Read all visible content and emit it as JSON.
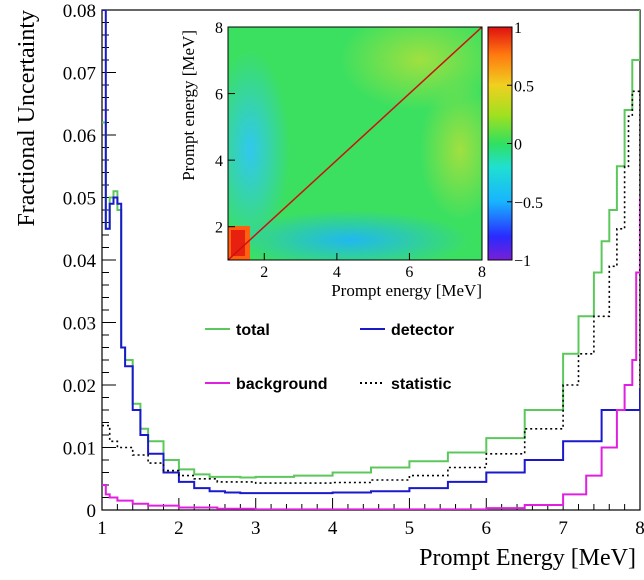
{
  "chart_data": [
    {
      "type": "line",
      "title": "",
      "xlabel": "Prompt Energy [MeV]",
      "ylabel": "Fractional Uncertainty",
      "xlim": [
        1,
        8
      ],
      "ylim": [
        0,
        0.08
      ],
      "x_ticks": [
        "1",
        "2",
        "3",
        "4",
        "5",
        "6",
        "7",
        "8"
      ],
      "y_ticks": [
        "0",
        "0.01",
        "0.02",
        "0.03",
        "0.04",
        "0.05",
        "0.06",
        "0.07",
        "0.08"
      ],
      "grid": false,
      "legend_position": "center",
      "series": [
        {
          "name": "total",
          "color": "#5cc85c",
          "style": "solid",
          "x": [
            1.0,
            1.05,
            1.1,
            1.15,
            1.2,
            1.25,
            1.3,
            1.4,
            1.5,
            1.6,
            1.8,
            2.0,
            2.2,
            2.4,
            2.6,
            2.8,
            3.0,
            3.5,
            4.0,
            4.5,
            5.0,
            5.5,
            6.0,
            6.5,
            7.0,
            7.2,
            7.4,
            7.5,
            7.6,
            7.7,
            7.8,
            7.9,
            8.0
          ],
          "y": [
            0.062,
            0.045,
            0.05,
            0.051,
            0.048,
            0.026,
            0.024,
            0.017,
            0.013,
            0.011,
            0.008,
            0.0065,
            0.0057,
            0.0053,
            0.0053,
            0.0052,
            0.0053,
            0.0055,
            0.006,
            0.0068,
            0.0078,
            0.0092,
            0.0115,
            0.016,
            0.025,
            0.031,
            0.038,
            0.043,
            0.048,
            0.055,
            0.064,
            0.072,
            0.08
          ]
        },
        {
          "name": "detector",
          "color": "#1a1acc",
          "style": "solid",
          "x": [
            1.0,
            1.05,
            1.1,
            1.15,
            1.2,
            1.25,
            1.3,
            1.4,
            1.5,
            1.6,
            1.8,
            2.0,
            2.2,
            2.4,
            2.6,
            2.8,
            3.0,
            3.5,
            4.0,
            4.5,
            5.0,
            5.5,
            6.0,
            6.5,
            7.0,
            7.5,
            8.0
          ],
          "y": [
            0.08,
            0.045,
            0.049,
            0.05,
            0.049,
            0.026,
            0.023,
            0.016,
            0.012,
            0.009,
            0.006,
            0.0045,
            0.0035,
            0.003,
            0.0028,
            0.0027,
            0.0027,
            0.0027,
            0.0028,
            0.003,
            0.0035,
            0.0045,
            0.006,
            0.008,
            0.011,
            0.016,
            0.0195
          ]
        },
        {
          "name": "background",
          "color": "#e020e0",
          "style": "solid",
          "x": [
            1.0,
            1.05,
            1.1,
            1.2,
            1.4,
            1.6,
            2.0,
            2.5,
            3.0,
            4.0,
            5.0,
            6.0,
            6.5,
            7.0,
            7.3,
            7.5,
            7.7,
            7.8,
            7.9,
            7.95,
            8.0
          ],
          "y": [
            0.004,
            0.0025,
            0.002,
            0.0015,
            0.001,
            0.0007,
            0.0004,
            0.0002,
            0.0001,
            0.0001,
            0.0001,
            0.0003,
            0.0008,
            0.0025,
            0.0055,
            0.01,
            0.016,
            0.02,
            0.024,
            0.038,
            0.05
          ]
        },
        {
          "name": "statistic",
          "color": "#000000",
          "style": "dotted",
          "x": [
            1.0,
            1.1,
            1.2,
            1.4,
            1.6,
            1.8,
            2.0,
            2.2,
            2.5,
            3.0,
            3.5,
            4.0,
            4.5,
            5.0,
            5.5,
            6.0,
            6.5,
            7.0,
            7.2,
            7.4,
            7.6,
            7.7,
            7.8,
            7.85,
            7.9,
            7.95,
            8.0
          ],
          "y": [
            0.0135,
            0.011,
            0.01,
            0.0088,
            0.0075,
            0.0063,
            0.0055,
            0.005,
            0.0045,
            0.0043,
            0.0043,
            0.0044,
            0.0048,
            0.0055,
            0.0068,
            0.009,
            0.013,
            0.02,
            0.025,
            0.031,
            0.039,
            0.045,
            0.055,
            0.063,
            0.067,
            0.067,
            0.02
          ]
        }
      ]
    },
    {
      "type": "heatmap",
      "title": "",
      "xlabel": "Prompt energy [MeV]",
      "ylabel": "Prompt energy [MeV]",
      "xlim": [
        1,
        8
      ],
      "ylim": [
        1,
        8
      ],
      "zlim": [
        -1,
        1
      ],
      "x_ticks": [
        "2",
        "4",
        "6",
        "8"
      ],
      "y_ticks": [
        "2",
        "4",
        "6",
        "8"
      ],
      "z_ticks": [
        "1",
        "0.5",
        "0",
        "−0.5",
        "−1"
      ],
      "description_values": {
        "diagonal": 1,
        "low_energy_block": {
          "x_range": [
            1.0,
            1.6
          ],
          "y_range": [
            1.0,
            1.6
          ],
          "value": 0.9
        }
      },
      "colorbar_position": "right"
    }
  ]
}
